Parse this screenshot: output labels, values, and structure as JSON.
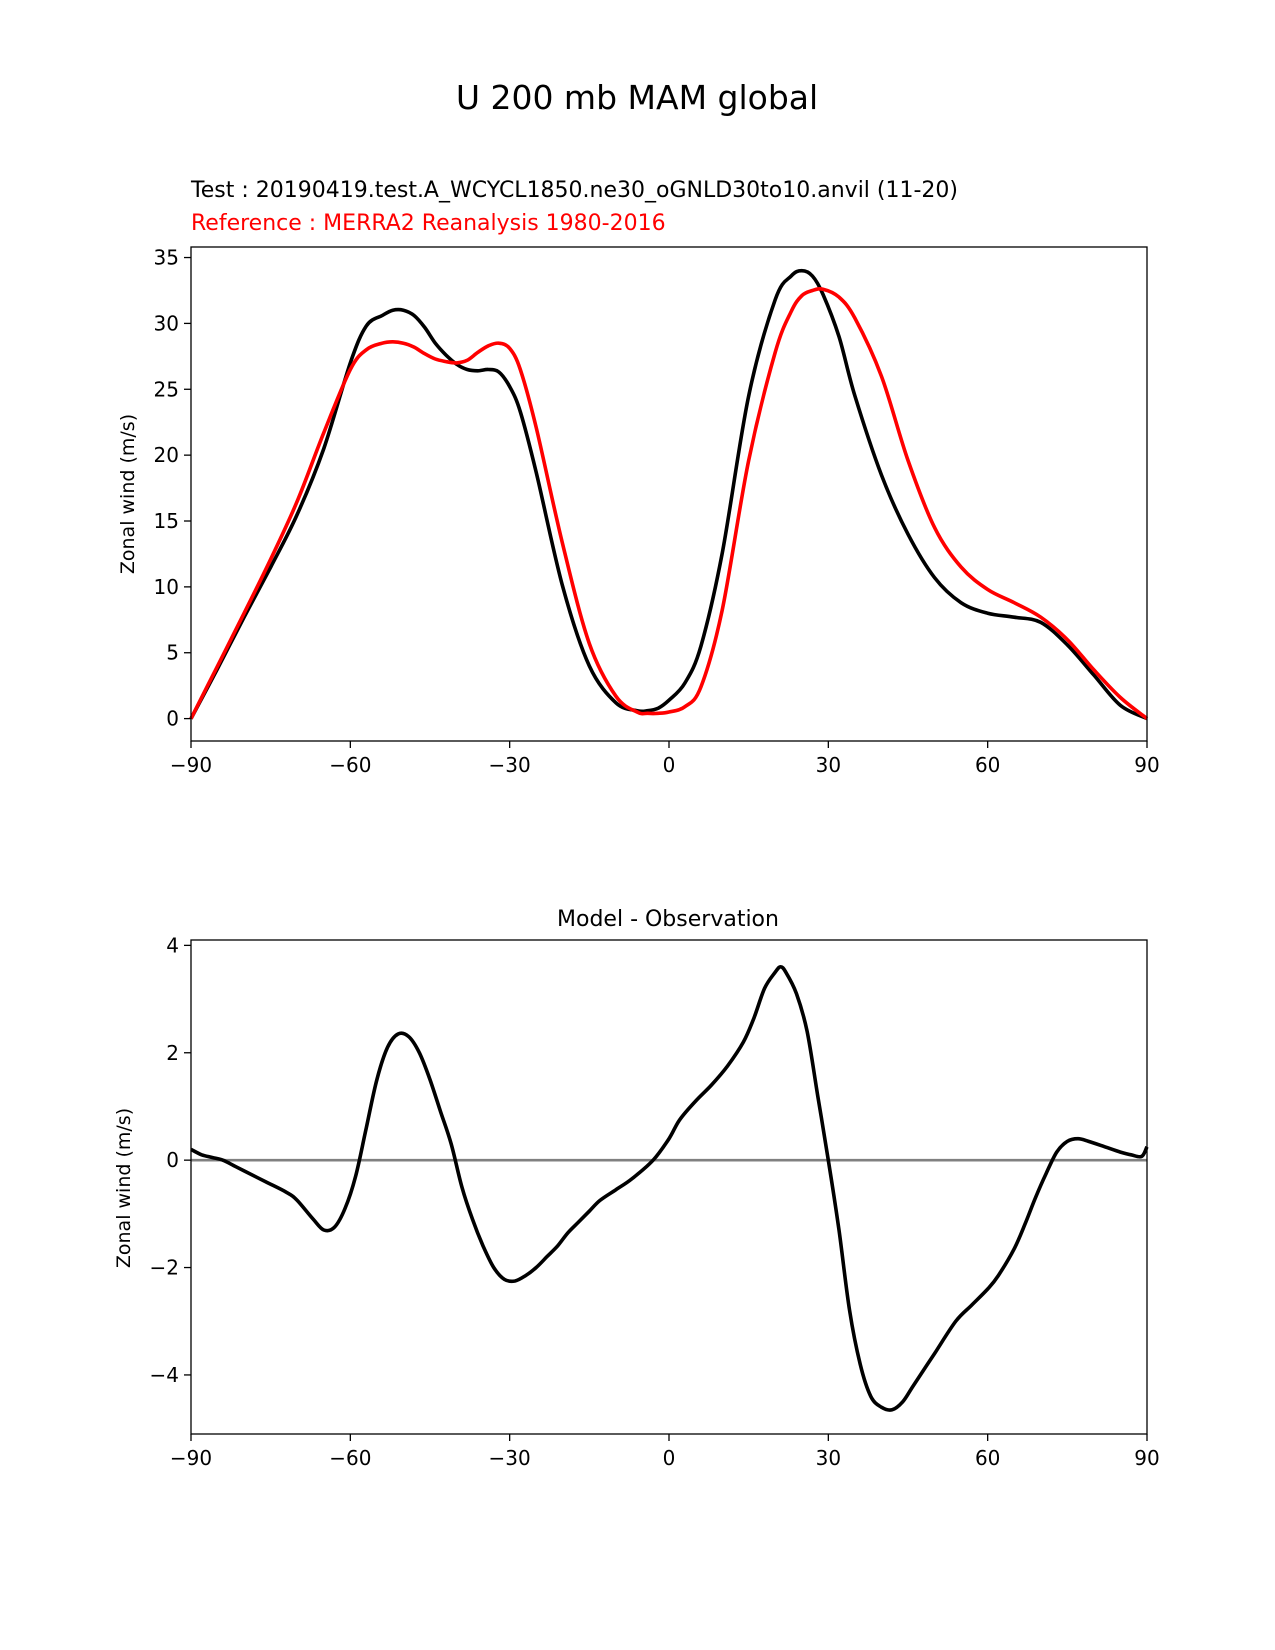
{
  "figure": {
    "title": "U 200 mb MAM global"
  },
  "chart_data": [
    {
      "type": "line",
      "test_label": "Test : 20190419.test.A_WCYCL1850.ne30_oGNLD30to10.anvil (11-20)",
      "reference_label": "Reference : MERRA2 Reanalysis 1980-2016",
      "xlabel": "",
      "ylabel": "Zonal wind (m/s)",
      "xlim": [
        -90,
        90
      ],
      "ylim": [
        -1.7,
        35.8
      ],
      "xticks": [
        -90,
        -60,
        -30,
        0,
        30,
        60,
        90
      ],
      "xtick_labels": [
        "−90",
        "−60",
        "−30",
        "0",
        "30",
        "60",
        "90"
      ],
      "yticks": [
        0,
        5,
        10,
        15,
        20,
        25,
        30,
        35
      ],
      "ytick_labels": [
        "0",
        "5",
        "10",
        "15",
        "20",
        "25",
        "30",
        "35"
      ],
      "series": [
        {
          "name": "Test",
          "color": "#000000",
          "x": [
            -90,
            -85,
            -80,
            -75,
            -70,
            -65,
            -60,
            -57,
            -54,
            -52,
            -50,
            -48,
            -46,
            -44,
            -42,
            -40,
            -38,
            -36,
            -34,
            -32,
            -30,
            -28,
            -25,
            -20,
            -15,
            -10,
            -6,
            -4,
            -2,
            0,
            3,
            6,
            10,
            15,
            20,
            23,
            25,
            27,
            29,
            32,
            35,
            40,
            45,
            50,
            55,
            60,
            65,
            70,
            75,
            80,
            85,
            90
          ],
          "values": [
            0,
            3.8,
            7.7,
            11.5,
            15.5,
            20.5,
            27,
            29.8,
            30.6,
            31,
            31,
            30.6,
            29.7,
            28.5,
            27.6,
            26.9,
            26.5,
            26.4,
            26.5,
            26.3,
            25.2,
            23.3,
            18.7,
            10,
            4,
            1.2,
            0.6,
            0.6,
            0.8,
            1.4,
            2.7,
            5.5,
            12.5,
            24.5,
            31.8,
            33.6,
            34,
            33.6,
            32.2,
            29,
            24.5,
            18.5,
            14,
            10.7,
            8.8,
            8,
            7.7,
            7.3,
            5.6,
            3.3,
            1,
            0
          ]
        },
        {
          "name": "Reference",
          "color": "#ff0000",
          "x": [
            -90,
            -85,
            -80,
            -75,
            -70,
            -65,
            -60,
            -57,
            -54,
            -52,
            -50,
            -48,
            -46,
            -44,
            -42,
            -40,
            -38,
            -36,
            -34,
            -32,
            -30,
            -28,
            -25,
            -20,
            -15,
            -10,
            -6,
            -4,
            -2,
            0,
            3,
            6,
            10,
            15,
            20,
            23,
            25,
            27,
            29,
            32,
            35,
            40,
            45,
            50,
            55,
            60,
            65,
            70,
            75,
            80,
            85,
            90
          ],
          "values": [
            0,
            4,
            8,
            12.1,
            16.5,
            21.7,
            26.5,
            28,
            28.5,
            28.6,
            28.5,
            28.2,
            27.7,
            27.3,
            27.1,
            27,
            27.2,
            27.8,
            28.3,
            28.5,
            28.1,
            26.5,
            22.1,
            13.2,
            5.7,
            1.7,
            0.5,
            0.4,
            0.4,
            0.5,
            0.9,
            2.4,
            8.2,
            19.6,
            27.8,
            30.9,
            32.1,
            32.5,
            32.6,
            32,
            30.4,
            26,
            19.6,
            14.5,
            11.5,
            9.8,
            8.8,
            7.7,
            6,
            3.7,
            1.6,
            0
          ]
        }
      ]
    },
    {
      "type": "line",
      "title": "Model - Observation",
      "xlabel": "",
      "ylabel": "Zonal wind (m/s)",
      "xlim": [
        -90,
        90
      ],
      "ylim": [
        -5.1,
        4.1
      ],
      "xticks": [
        -90,
        -60,
        -30,
        0,
        30,
        60,
        90
      ],
      "xtick_labels": [
        "−90",
        "−60",
        "−30",
        "0",
        "30",
        "60",
        "90"
      ],
      "yticks": [
        -4,
        -2,
        0,
        2,
        4
      ],
      "ytick_labels": [
        "−4",
        "−2",
        "0",
        "2",
        "4"
      ],
      "zero_line_color": "#808080",
      "series": [
        {
          "name": "Model - Observation",
          "color": "#000000",
          "x": [
            -90,
            -88,
            -86,
            -84,
            -82,
            -80,
            -76,
            -72,
            -70,
            -67,
            -65,
            -63,
            -61,
            -59,
            -57,
            -55,
            -53,
            -51,
            -49,
            -47,
            -45,
            -43,
            -41,
            -39,
            -37,
            -35,
            -33,
            -31,
            -29,
            -27,
            -25,
            -23,
            -21,
            -19,
            -17,
            -15,
            -13,
            -10,
            -7,
            -3,
            0,
            2,
            5,
            8,
            11,
            14,
            16,
            18,
            20,
            21,
            22,
            24,
            26,
            28,
            30,
            32,
            34,
            36,
            38,
            40,
            42,
            44,
            46,
            50,
            54,
            57,
            60,
            62,
            65,
            67,
            69,
            71,
            73,
            75,
            77,
            79,
            82,
            85,
            87,
            89,
            90
          ],
          "values": [
            0.2,
            0.1,
            0.05,
            0,
            -0.1,
            -0.2,
            -0.4,
            -0.6,
            -0.75,
            -1.1,
            -1.3,
            -1.25,
            -0.9,
            -0.3,
            0.6,
            1.5,
            2.1,
            2.35,
            2.3,
            2.0,
            1.5,
            0.9,
            0.3,
            -0.5,
            -1.1,
            -1.6,
            -2.0,
            -2.22,
            -2.25,
            -2.15,
            -2.0,
            -1.8,
            -1.6,
            -1.35,
            -1.15,
            -0.95,
            -0.75,
            -0.55,
            -0.35,
            0,
            0.4,
            0.75,
            1.1,
            1.4,
            1.75,
            2.2,
            2.65,
            3.2,
            3.5,
            3.6,
            3.5,
            3.1,
            2.4,
            1.2,
            0,
            -1.3,
            -2.8,
            -3.8,
            -4.4,
            -4.6,
            -4.65,
            -4.5,
            -4.2,
            -3.6,
            -3.0,
            -2.7,
            -2.4,
            -2.15,
            -1.65,
            -1.2,
            -0.7,
            -0.25,
            0.15,
            0.35,
            0.4,
            0.35,
            0.25,
            0.15,
            0.1,
            0.07,
            0.25
          ]
        }
      ]
    }
  ]
}
